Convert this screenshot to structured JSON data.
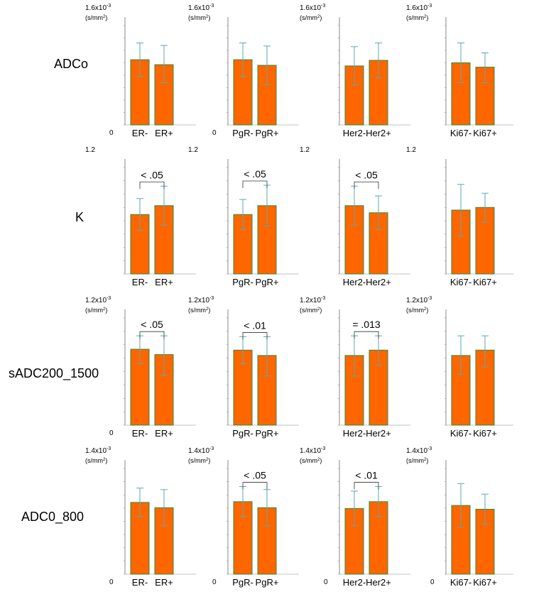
{
  "chart_data": [
    {
      "type": "bar",
      "row": "ADCo",
      "ymax_label": "1.6x10",
      "exp": "-3",
      "unit": "(s/mm",
      "unit_sup": "2",
      "unit_end": ")",
      "zero": "0",
      "categories": [
        "ER-",
        "ER+"
      ],
      "values": [
        1.05,
        0.97
      ],
      "err_hi": [
        1.32,
        1.28
      ],
      "err_lo": [
        0.78,
        0.68
      ],
      "ylim": [
        0,
        1.6
      ],
      "sig": ""
    },
    {
      "type": "bar",
      "row": "ADCo",
      "ymax_label": "1.6x10",
      "exp": "-3",
      "unit": "(s/mm",
      "unit_sup": "2",
      "unit_end": ")",
      "zero": "0",
      "categories": [
        "PgR-",
        "PgR+"
      ],
      "values": [
        1.05,
        0.96
      ],
      "err_hi": [
        1.32,
        1.27
      ],
      "err_lo": [
        0.78,
        0.65
      ],
      "ylim": [
        0,
        1.6
      ],
      "sig": ""
    },
    {
      "type": "bar",
      "row": "ADCo",
      "ymax_label": "1.6x10",
      "exp": "-3",
      "unit": "(s/mm",
      "unit_sup": "2",
      "unit_end": ")",
      "zero": "",
      "categories": [
        "Her2-",
        "Her2+"
      ],
      "values": [
        0.95,
        1.04
      ],
      "err_hi": [
        1.26,
        1.32
      ],
      "err_lo": [
        0.64,
        0.76
      ],
      "ylim": [
        0,
        1.6
      ],
      "sig": ""
    },
    {
      "type": "bar",
      "row": "ADCo",
      "ymax_label": "1.6x10",
      "exp": "-3",
      "unit": "(s/mm",
      "unit_sup": "2",
      "unit_end": ")",
      "zero": "",
      "categories": [
        "Ki67-",
        "Ki67+"
      ],
      "values": [
        1.0,
        0.93
      ],
      "err_hi": [
        1.32,
        1.16
      ],
      "err_lo": [
        0.68,
        0.68
      ],
      "ylim": [
        0,
        1.6
      ],
      "sig": ""
    },
    {
      "type": "bar",
      "row": "K",
      "ymax_label": "1.2",
      "exp": "",
      "unit": "",
      "unit_sup": "",
      "unit_end": "",
      "zero": "",
      "categories": [
        "ER-",
        "ER+"
      ],
      "values": [
        0.67,
        0.77
      ],
      "err_hi": [
        0.85,
        0.99
      ],
      "err_lo": [
        0.49,
        0.55
      ],
      "ylim": [
        0,
        1.2
      ],
      "sig": "< .05"
    },
    {
      "type": "bar",
      "row": "K",
      "ymax_label": "1.2",
      "exp": "",
      "unit": "",
      "unit_sup": "",
      "unit_end": "",
      "zero": "",
      "categories": [
        "PgR-",
        "PgR+"
      ],
      "values": [
        0.67,
        0.77
      ],
      "err_hi": [
        0.84,
        1.0
      ],
      "err_lo": [
        0.5,
        0.54
      ],
      "ylim": [
        0,
        1.2
      ],
      "sig": "< .05"
    },
    {
      "type": "bar",
      "row": "K",
      "ymax_label": "1.2",
      "exp": "",
      "unit": "",
      "unit_sup": "",
      "unit_end": "",
      "zero": "",
      "categories": [
        "Her2-",
        "Her2+"
      ],
      "values": [
        0.77,
        0.69
      ],
      "err_hi": [
        0.99,
        0.88
      ],
      "err_lo": [
        0.55,
        0.5
      ],
      "ylim": [
        0,
        1.2
      ],
      "sig": "< .05"
    },
    {
      "type": "bar",
      "row": "K",
      "ymax_label": "1.2",
      "exp": "",
      "unit": "",
      "unit_sup": "",
      "unit_end": "",
      "zero": "",
      "categories": [
        "Ki67-",
        "Ki67+"
      ],
      "values": [
        0.72,
        0.75
      ],
      "err_hi": [
        1.01,
        0.91
      ],
      "err_lo": [
        0.43,
        0.58
      ],
      "ylim": [
        0,
        1.2
      ],
      "sig": ""
    },
    {
      "type": "bar",
      "row": "sADC200_1500",
      "ymax_label": "1.2x10",
      "exp": "-3",
      "unit": "(s/mm",
      "unit_sup": "2",
      "unit_end": ")",
      "zero": "0",
      "categories": [
        "ER-",
        "ER+"
      ],
      "values": [
        0.85,
        0.79
      ],
      "err_hi": [
        1.0,
        1.0
      ],
      "err_lo": [
        0.69,
        0.56
      ],
      "ylim": [
        0,
        1.2
      ],
      "sig": "< .05"
    },
    {
      "type": "bar",
      "row": "sADC200_1500",
      "ymax_label": "1.2x10",
      "exp": "-3",
      "unit": "(s/mm",
      "unit_sup": "2",
      "unit_end": ")",
      "zero": "",
      "categories": [
        "PgR-",
        "PgR+"
      ],
      "values": [
        0.84,
        0.78
      ],
      "err_hi": [
        0.99,
        0.99
      ],
      "err_lo": [
        0.69,
        0.55
      ],
      "ylim": [
        0,
        1.2
      ],
      "sig": "< .01"
    },
    {
      "type": "bar",
      "row": "sADC200_1500",
      "ymax_label": "1.2x10",
      "exp": "-3",
      "unit": "(s/mm",
      "unit_sup": "2",
      "unit_end": ")",
      "zero": "",
      "categories": [
        "Her2-",
        "Her2+"
      ],
      "values": [
        0.78,
        0.84
      ],
      "err_hi": [
        1.0,
        1.0
      ],
      "err_lo": [
        0.55,
        0.67
      ],
      "ylim": [
        0,
        1.2
      ],
      "sig": "= .013"
    },
    {
      "type": "bar",
      "row": "sADC200_1500",
      "ymax_label": "1.2x10",
      "exp": "-3",
      "unit": "(s/mm",
      "unit_sup": "2",
      "unit_end": ")",
      "zero": "",
      "categories": [
        "Ki67-",
        "Ki67+"
      ],
      "values": [
        0.78,
        0.84
      ],
      "err_hi": [
        1.0,
        1.0
      ],
      "err_lo": [
        0.57,
        0.65
      ],
      "ylim": [
        0,
        1.2
      ],
      "sig": ""
    },
    {
      "type": "bar",
      "row": "ADC0_800",
      "ymax_label": "1.4x10",
      "exp": "-3",
      "unit": "(s/mm",
      "unit_sup": "2",
      "unit_end": ")",
      "zero": "0",
      "categories": [
        "ER-",
        "ER+"
      ],
      "values": [
        0.95,
        0.88
      ],
      "err_hi": [
        1.14,
        1.12
      ],
      "err_lo": [
        0.76,
        0.64
      ],
      "ylim": [
        0,
        1.4
      ],
      "sig": ""
    },
    {
      "type": "bar",
      "row": "ADC0_800",
      "ymax_label": "1.4x10",
      "exp": "-3",
      "unit": "(s/mm",
      "unit_sup": "2",
      "unit_end": ")",
      "zero": "0",
      "categories": [
        "PgR-",
        "PgR+"
      ],
      "values": [
        0.96,
        0.88
      ],
      "err_hi": [
        1.16,
        1.12
      ],
      "err_lo": [
        0.76,
        0.64
      ],
      "ylim": [
        0,
        1.4
      ],
      "sig": "< .05"
    },
    {
      "type": "bar",
      "row": "ADC0_800",
      "ymax_label": "1.4x10",
      "exp": "-3",
      "unit": "(s/mm",
      "unit_sup": "2",
      "unit_end": ")",
      "zero": "0",
      "categories": [
        "Her2-",
        "Her2+"
      ],
      "values": [
        0.87,
        0.96
      ],
      "err_hi": [
        1.1,
        1.16
      ],
      "err_lo": [
        0.64,
        0.76
      ],
      "ylim": [
        0,
        1.4
      ],
      "sig": "< .01"
    },
    {
      "type": "bar",
      "row": "ADC0_800",
      "ymax_label": "1.4x10",
      "exp": "-3",
      "unit": "(s/mm",
      "unit_sup": "2",
      "unit_end": ")",
      "zero": "0",
      "categories": [
        "Ki67-",
        "Ki67+"
      ],
      "values": [
        0.91,
        0.86
      ],
      "err_hi": [
        1.2,
        1.06
      ],
      "err_lo": [
        0.62,
        0.66
      ],
      "ylim": [
        0,
        1.4
      ],
      "sig": ""
    }
  ],
  "row_labels": [
    "ADCo",
    "K",
    "sADC200_1500",
    "ADC0_800"
  ],
  "colors": {
    "bar_fill": "#ff6600",
    "bar_stroke": "#2e8b3a",
    "error_bar": "#5aaab0",
    "axis": "#888888"
  }
}
